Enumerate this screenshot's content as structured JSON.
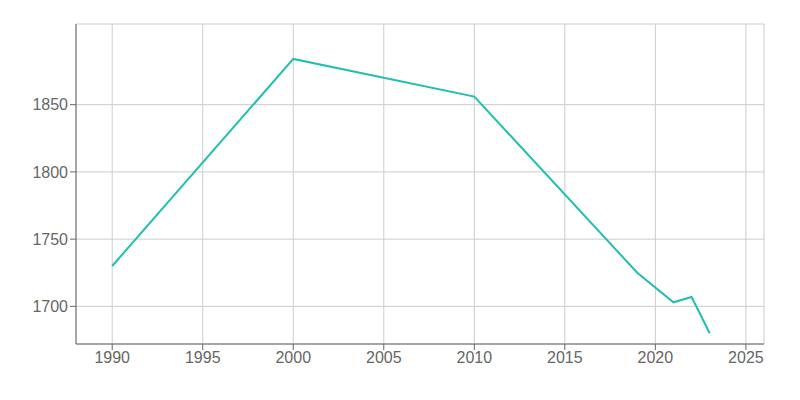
{
  "chart_data": {
    "type": "line",
    "x": [
      1990,
      2000,
      2010,
      2019,
      2021,
      2022,
      2023
    ],
    "values": [
      1730,
      1884,
      1856,
      1725,
      1703,
      1707,
      1680
    ],
    "color": "#20c0b0",
    "xlim": [
      1988,
      2026
    ],
    "ylim": [
      1672,
      1910
    ],
    "xticks": [
      1990,
      1995,
      2000,
      2005,
      2010,
      2015,
      2020,
      2025
    ],
    "yticks": [
      1700,
      1750,
      1800,
      1850
    ],
    "grid": true
  }
}
